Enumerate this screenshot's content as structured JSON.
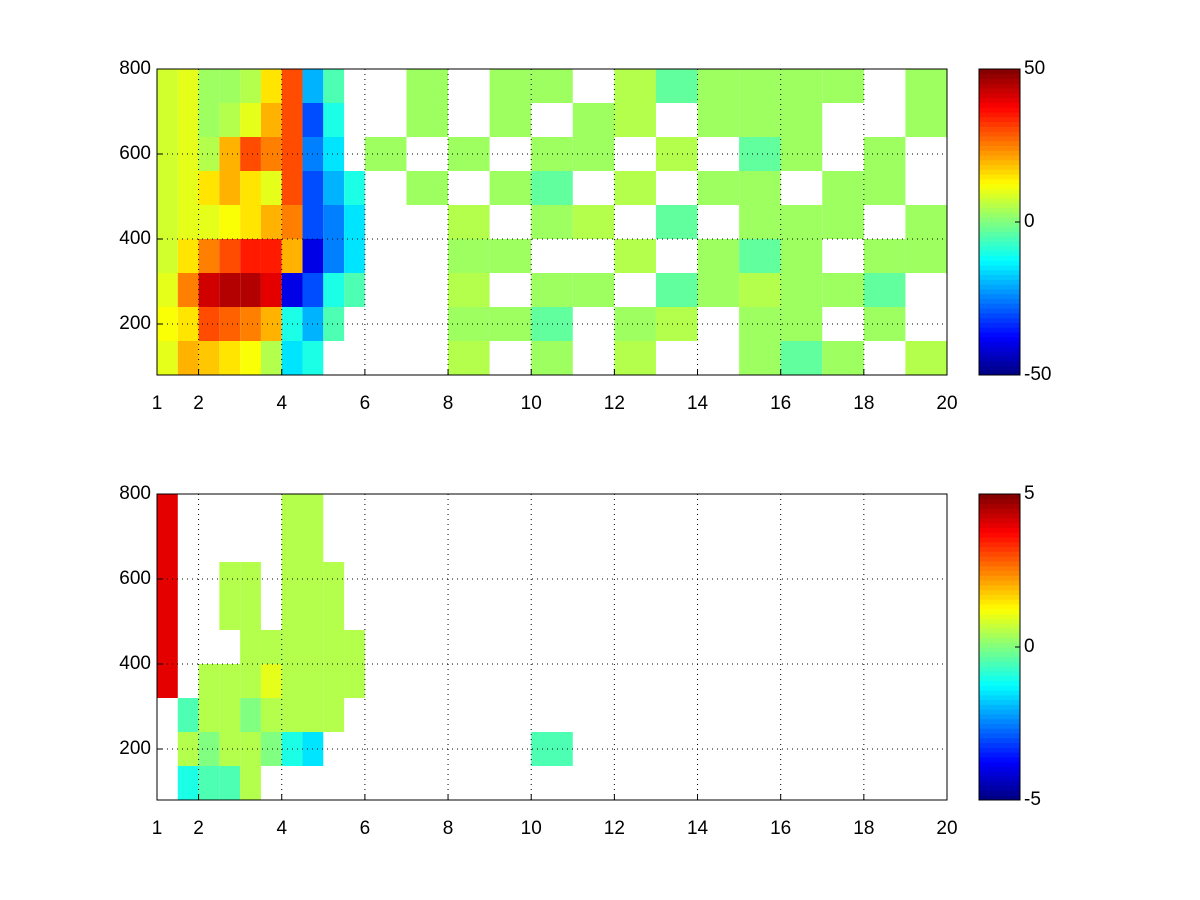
{
  "chart_data": [
    {
      "type": "heatmap",
      "x_edges": [
        1,
        1.5,
        2,
        2.5,
        3,
        3.5,
        4,
        4.5,
        5,
        5.5,
        6,
        7,
        8,
        9,
        10,
        11,
        12,
        13,
        14,
        15,
        16,
        17,
        18,
        19,
        20
      ],
      "y_edges": [
        80,
        160,
        240,
        320,
        400,
        480,
        560,
        640,
        720,
        800
      ],
      "z": [
        [
          10,
          20,
          18,
          15,
          12,
          5,
          -15,
          -10,
          null,
          null,
          null,
          null,
          5,
          null,
          3,
          null,
          5,
          null,
          null,
          3,
          -3,
          3,
          null,
          5
        ],
        [
          12,
          15,
          30,
          28,
          25,
          20,
          -10,
          -20,
          -5,
          null,
          null,
          null,
          3,
          3,
          -3,
          null,
          3,
          5,
          null,
          3,
          3,
          null,
          3,
          null
        ],
        [
          10,
          25,
          42,
          45,
          45,
          40,
          -40,
          -30,
          -10,
          -5,
          null,
          null,
          5,
          null,
          3,
          3,
          null,
          -3,
          3,
          5,
          3,
          3,
          -3,
          null
        ],
        [
          8,
          15,
          25,
          30,
          35,
          35,
          20,
          -40,
          -25,
          -15,
          null,
          null,
          3,
          3,
          null,
          null,
          5,
          null,
          3,
          -3,
          3,
          null,
          3,
          3
        ],
        [
          8,
          10,
          10,
          12,
          15,
          20,
          25,
          -30,
          -25,
          -15,
          null,
          null,
          5,
          null,
          3,
          5,
          null,
          -3,
          null,
          3,
          3,
          3,
          null,
          3
        ],
        [
          8,
          10,
          15,
          20,
          15,
          10,
          30,
          -30,
          -20,
          -10,
          null,
          3,
          null,
          3,
          -3,
          null,
          5,
          null,
          3,
          3,
          null,
          3,
          3,
          null
        ],
        [
          8,
          10,
          5,
          20,
          30,
          25,
          30,
          -25,
          -15,
          null,
          3,
          null,
          3,
          null,
          3,
          3,
          null,
          5,
          null,
          -3,
          3,
          null,
          3,
          null
        ],
        [
          8,
          10,
          3,
          5,
          10,
          20,
          30,
          -30,
          -10,
          null,
          null,
          3,
          null,
          3,
          null,
          3,
          5,
          null,
          3,
          3,
          3,
          null,
          null,
          3
        ],
        [
          8,
          10,
          3,
          3,
          5,
          15,
          30,
          -20,
          -5,
          null,
          null,
          3,
          null,
          3,
          3,
          null,
          5,
          -3,
          3,
          3,
          3,
          3,
          null,
          3
        ]
      ],
      "xlim": [
        1,
        20
      ],
      "xticks": [
        1,
        2,
        4,
        6,
        8,
        10,
        12,
        14,
        16,
        18,
        20
      ],
      "ylim": [
        80,
        800
      ],
      "yticks": [
        200,
        400,
        600,
        800
      ],
      "clim": [
        -50,
        50
      ],
      "cticks": [
        -50,
        0,
        50
      ],
      "colormap": "jet",
      "grid": true
    },
    {
      "type": "heatmap",
      "x_edges": [
        1,
        1.5,
        2,
        2.5,
        3,
        3.5,
        4,
        4.5,
        5,
        5.5,
        6,
        7,
        8,
        9,
        10,
        11,
        12,
        13,
        14,
        15,
        16,
        17,
        18,
        19,
        20
      ],
      "y_edges": [
        80,
        160,
        240,
        320,
        400,
        480,
        560,
        640,
        720,
        800
      ],
      "z": [
        [
          null,
          -1,
          -0.5,
          -0.5,
          0.5,
          null,
          null,
          null,
          null,
          null,
          null,
          null,
          null,
          null,
          null,
          null,
          null,
          null,
          null,
          null,
          null,
          null,
          null,
          null
        ],
        [
          null,
          0.5,
          0,
          0.5,
          0.5,
          0,
          -1,
          -1.5,
          null,
          null,
          null,
          null,
          null,
          null,
          -0.5,
          null,
          null,
          null,
          null,
          null,
          null,
          null,
          null,
          null
        ],
        [
          null,
          -0.5,
          0.5,
          0.5,
          0,
          0.5,
          0.5,
          0.5,
          0.5,
          null,
          null,
          null,
          null,
          null,
          null,
          null,
          null,
          null,
          null,
          null,
          null,
          null,
          null,
          null
        ],
        [
          4,
          null,
          0.5,
          0.5,
          0.5,
          1,
          0.5,
          0.5,
          0.5,
          0.5,
          null,
          null,
          null,
          null,
          null,
          null,
          null,
          null,
          null,
          null,
          null,
          null,
          null,
          null
        ],
        [
          4,
          null,
          null,
          null,
          0.5,
          0.5,
          0.5,
          0.5,
          0.5,
          0.5,
          null,
          null,
          null,
          null,
          null,
          null,
          null,
          null,
          null,
          null,
          null,
          null,
          null,
          null
        ],
        [
          4,
          null,
          null,
          0.5,
          0.5,
          null,
          0.5,
          0.5,
          0.5,
          null,
          null,
          null,
          null,
          null,
          null,
          null,
          null,
          null,
          null,
          null,
          null,
          null,
          null,
          null
        ],
        [
          4,
          null,
          null,
          0.5,
          0.5,
          null,
          0.5,
          0.5,
          0.5,
          null,
          null,
          null,
          null,
          null,
          null,
          null,
          null,
          null,
          null,
          null,
          null,
          null,
          null,
          null
        ],
        [
          4,
          null,
          null,
          null,
          null,
          null,
          0.5,
          0.5,
          null,
          null,
          null,
          null,
          null,
          null,
          null,
          null,
          null,
          null,
          null,
          null,
          null,
          null,
          null,
          null
        ],
        [
          4,
          null,
          null,
          null,
          null,
          null,
          0.5,
          0.5,
          null,
          null,
          null,
          null,
          null,
          null,
          null,
          null,
          null,
          null,
          null,
          null,
          null,
          null,
          null,
          null
        ]
      ],
      "xlim": [
        1,
        20
      ],
      "xticks": [
        1,
        2,
        4,
        6,
        8,
        10,
        12,
        14,
        16,
        18,
        20
      ],
      "ylim": [
        80,
        800
      ],
      "yticks": [
        200,
        400,
        600,
        800
      ],
      "clim": [
        -5,
        5
      ],
      "cticks": [
        -5,
        0,
        5
      ],
      "colormap": "jet",
      "grid": true
    }
  ]
}
